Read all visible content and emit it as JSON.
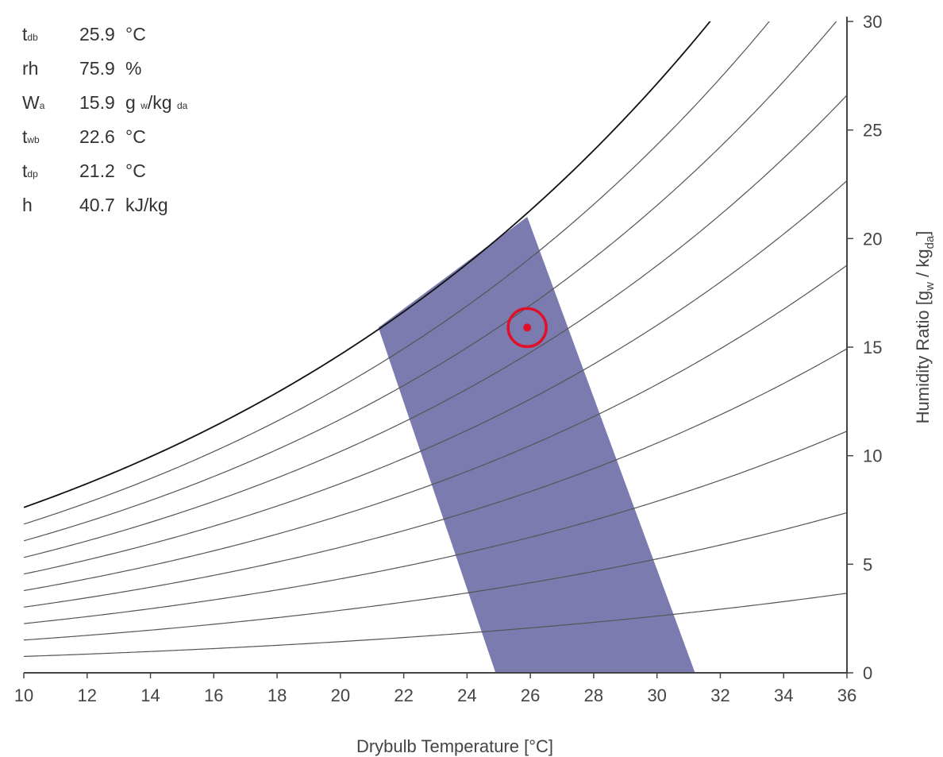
{
  "readout": {
    "tdb": {
      "sym": "t",
      "sub": "db",
      "value": "25.9",
      "unit": "°C"
    },
    "rh": {
      "sym": "rh",
      "sub": "",
      "value": "75.9",
      "unit": "%"
    },
    "wa": {
      "sym": "W",
      "sub": "a",
      "value": "15.9",
      "unit_main": "g",
      "unit_sub1": "w",
      "unit_mid": "/kg",
      "unit_sub2": "da"
    },
    "twb": {
      "sym": "t",
      "sub": "wb",
      "value": "22.6",
      "unit": "°C"
    },
    "tdp": {
      "sym": "t",
      "sub": "dp",
      "value": "21.2",
      "unit": "°C"
    },
    "h": {
      "sym": "h",
      "sub": "",
      "value": "40.7",
      "unit": "kJ/kg"
    }
  },
  "chart_data": {
    "type": "line",
    "xlabel": "Drybulb Temperature [°C]",
    "ylabel_main": "Humidity Ratio [g",
    "ylabel_sub1": "w",
    "ylabel_mid": " / kg",
    "ylabel_sub2": "da",
    "ylabel_end": "]",
    "xlim": [
      10,
      36
    ],
    "ylim": [
      0,
      30
    ],
    "x_ticks": [
      10,
      12,
      14,
      16,
      18,
      20,
      22,
      24,
      26,
      28,
      30,
      32,
      34,
      36
    ],
    "y_ticks": [
      0,
      5,
      10,
      15,
      20,
      25,
      30
    ],
    "rh_curves_percent": [
      10,
      20,
      30,
      40,
      50,
      60,
      70,
      80,
      90,
      100
    ],
    "comfort_zone": {
      "color": "#7b7bb0",
      "vertices": [
        {
          "t": 21.2,
          "w": 15.9
        },
        {
          "t": 25.9,
          "w": 21.0
        },
        {
          "t": 31.2,
          "w": 0
        },
        {
          "t": 24.9,
          "w": 0
        }
      ]
    },
    "state_point": {
      "t": 25.9,
      "w": 15.9,
      "color": "#e0102a"
    }
  }
}
